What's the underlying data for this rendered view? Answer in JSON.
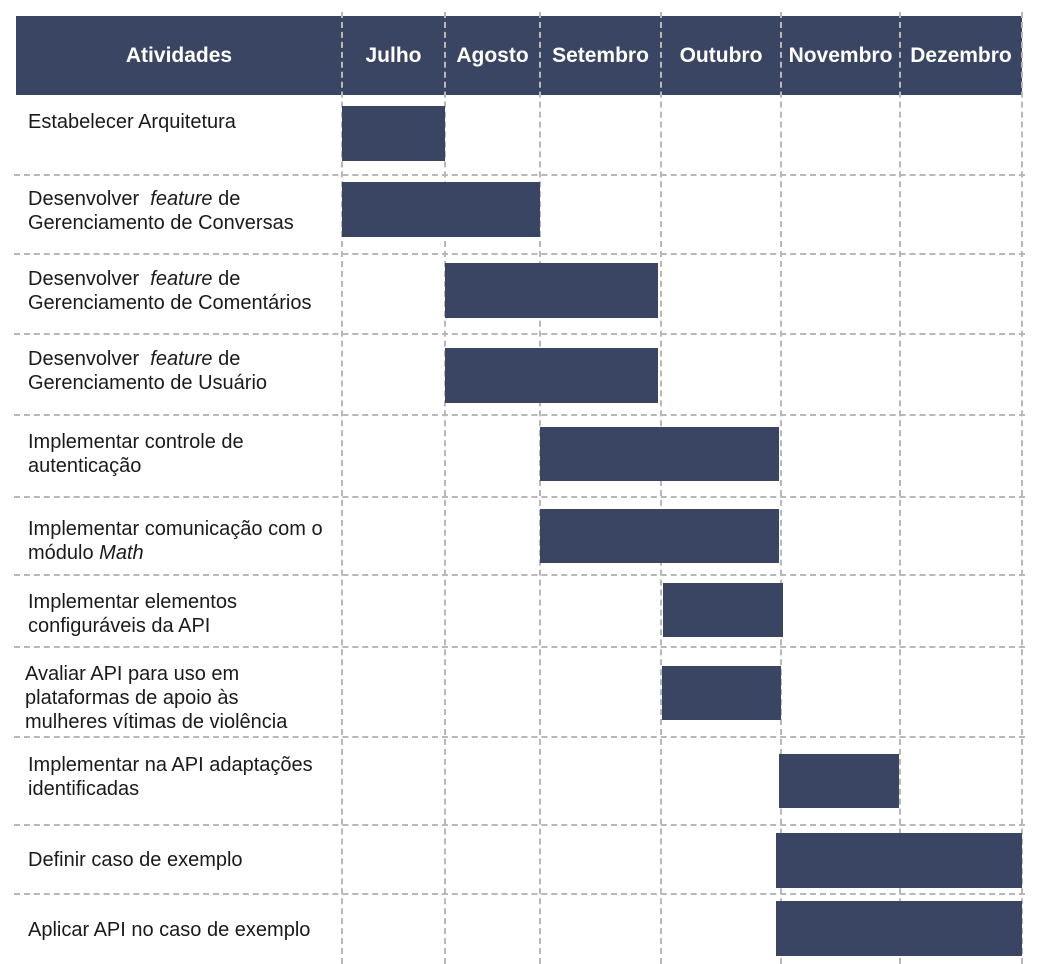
{
  "header": {
    "activities_label": "Atividades",
    "months": [
      "Julho",
      "Agosto",
      "Setembro",
      "Outubro",
      "Novembro",
      "Dezembro"
    ]
  },
  "colors": {
    "header_bg": "#394563",
    "bar": "#394563",
    "grid": "#b8b8b8"
  },
  "tasks": [
    {
      "lines": [
        [
          {
            "t": "Estabelecer Arquitetura"
          }
        ]
      ],
      "start": 0,
      "end": 1
    },
    {
      "lines": [
        [
          {
            "t": "Desenvolver  "
          },
          {
            "t": "feature",
            "i": true
          },
          {
            "t": " de"
          }
        ],
        [
          {
            "t": "Gerenciamento de Conversas"
          }
        ]
      ],
      "start": 0,
      "end": 2
    },
    {
      "lines": [
        [
          {
            "t": "Desenvolver  "
          },
          {
            "t": "feature",
            "i": true
          },
          {
            "t": " de"
          }
        ],
        [
          {
            "t": "Gerenciamento de Comentários"
          }
        ]
      ],
      "start": 1,
      "end": 3
    },
    {
      "lines": [
        [
          {
            "t": "Desenvolver  "
          },
          {
            "t": "feature",
            "i": true
          },
          {
            "t": " de"
          }
        ],
        [
          {
            "t": "Gerenciamento de Usuário"
          }
        ]
      ],
      "start": 1,
      "end": 3
    },
    {
      "lines": [
        [
          {
            "t": "Implementar controle de"
          }
        ],
        [
          {
            "t": "autenticação"
          }
        ]
      ],
      "start": 2,
      "end": 4
    },
    {
      "lines": [
        [
          {
            "t": "Implementar comunicação com o"
          }
        ],
        [
          {
            "t": "módulo "
          },
          {
            "t": "Math",
            "i": true
          }
        ]
      ],
      "start": 2,
      "end": 4
    },
    {
      "lines": [
        [
          {
            "t": "Implementar elementos"
          }
        ],
        [
          {
            "t": "configuráveis da API"
          }
        ]
      ],
      "start": 3,
      "end": 4
    },
    {
      "lines": [
        [
          {
            "t": "Avaliar API para uso em"
          }
        ],
        [
          {
            "t": "plataformas de apoio às"
          }
        ],
        [
          {
            "t": "mulheres vítimas de violência"
          }
        ]
      ],
      "start": 3,
      "end": 4
    },
    {
      "lines": [
        [
          {
            "t": "Implementar na API adaptações"
          }
        ],
        [
          {
            "t": "identificadas"
          }
        ]
      ],
      "start": 4,
      "end": 5
    },
    {
      "lines": [
        [
          {
            "t": "Definir caso de exemplo"
          }
        ]
      ],
      "start": 4,
      "end": 6
    },
    {
      "lines": [
        [
          {
            "t": "Aplicar API no caso de exemplo"
          }
        ]
      ],
      "start": 4,
      "end": 6
    }
  ]
}
